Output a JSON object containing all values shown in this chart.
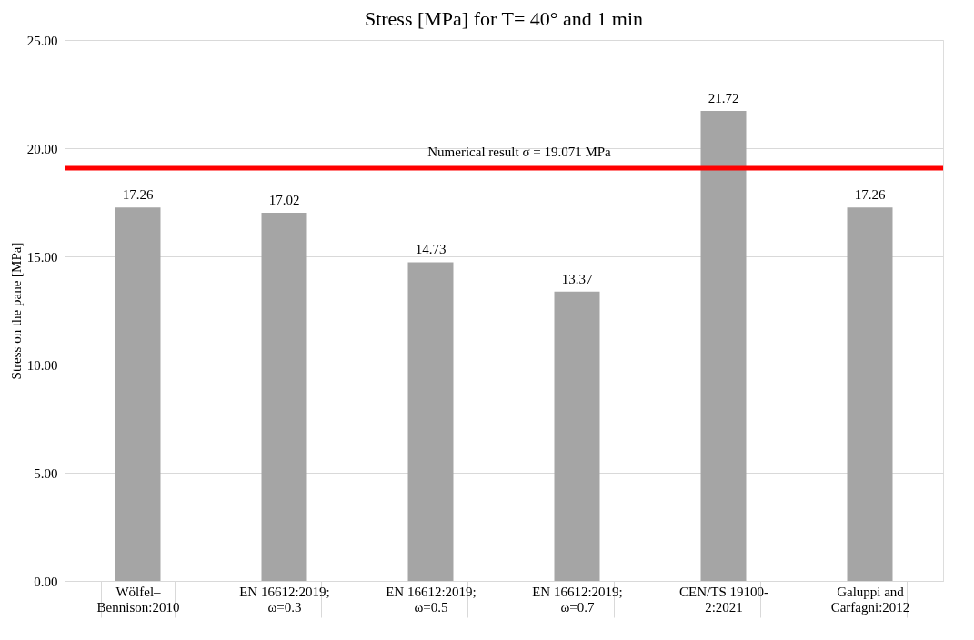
{
  "chart_data": {
    "type": "bar",
    "title": "Stress [MPa] for T= 40° and 1 min",
    "ylabel": "Stress on the pane [MPa]",
    "categories": [
      "Wölfel–Bennison:2010",
      "EN 16612:2019; ω=0.3",
      "EN 16612:2019; ω=0.5",
      "EN 16612:2019; ω=0.7",
      "CEN/TS 19100-2:2021",
      "Galuppi and Carfagni:2012"
    ],
    "values": [
      17.26,
      17.02,
      14.73,
      13.37,
      21.72,
      17.26
    ],
    "color": "#a5a5a5",
    "ylim": [
      0,
      25
    ],
    "yticks": [
      {
        "value": 0,
        "label": "0.00"
      },
      {
        "value": 5,
        "label": "5.00"
      },
      {
        "value": 10,
        "label": "10.00"
      },
      {
        "value": 15,
        "label": "15.00"
      },
      {
        "value": 20,
        "label": "20.00"
      },
      {
        "value": 25,
        "label": "25.00"
      }
    ],
    "data_labels": true,
    "grid": "y",
    "ref_lines": [
      {
        "axis": "y",
        "value": 19.071,
        "label": "Numerical result σ = 19.071 MPa",
        "color": "#ff0000"
      }
    ]
  }
}
